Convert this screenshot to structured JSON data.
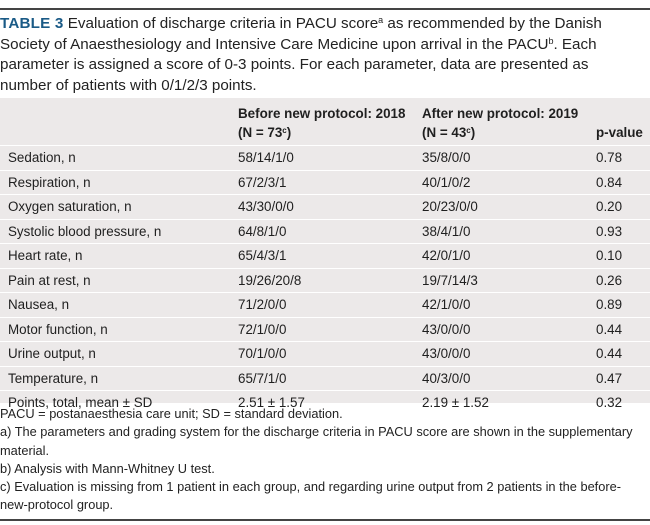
{
  "caption": {
    "label": "TABLE 3",
    "text_1": " Evaluation of discharge criteria in PACU score",
    "sup_a": "a",
    "text_2": " as recommended by the Danish Society of Anaesthesiology and Intensive Care Medicine upon arrival in the PACU",
    "sup_b": "b",
    "text_3": ". Each parameter is assigned a score of 0-3 points. For each parameter, data are presented as number of patients with 0/1/2/3 points."
  },
  "table": {
    "headers": {
      "parameter": "",
      "before_title": "Before new protocol: 2018",
      "before_n": "(N = 73",
      "before_sup": "c",
      "before_close": ")",
      "after_title": "After new protocol: 2019",
      "after_n": "(N = 43",
      "after_sup": "c",
      "after_close": ")",
      "pvalue": "p-value"
    },
    "rows": [
      {
        "parameter": "Sedation, n",
        "before": "58/14/1/0",
        "after": "35/8/0/0",
        "p": "0.78"
      },
      {
        "parameter": "Respiration, n",
        "before": "67/2/3/1",
        "after": "40/1/0/2",
        "p": "0.84"
      },
      {
        "parameter": "Oxygen saturation, n",
        "before": "43/30/0/0",
        "after": "20/23/0/0",
        "p": "0.20"
      },
      {
        "parameter": "Systolic blood pressure, n",
        "before": "64/8/1/0",
        "after": "38/4/1/0",
        "p": "0.93"
      },
      {
        "parameter": "Heart rate, n",
        "before": "65/4/3/1",
        "after": "42/0/1/0",
        "p": "0.10"
      },
      {
        "parameter": "Pain at rest, n",
        "before": "19/26/20/8",
        "after": "19/7/14/3",
        "p": "0.26"
      },
      {
        "parameter": "Nausea, n",
        "before": "71/2/0/0",
        "after": "42/1/0/0",
        "p": "0.89"
      },
      {
        "parameter": "Motor function, n",
        "before": "72/1/0/0",
        "after": "43/0/0/0",
        "p": "0.44"
      },
      {
        "parameter": "Urine output, n",
        "before": "70/1/0/0",
        "after": "43/0/0/0",
        "p": "0.44"
      },
      {
        "parameter": "Temperature, n",
        "before": "65/7/1/0",
        "after": "40/3/0/0",
        "p": "0.47"
      },
      {
        "parameter": "Points, total, mean ± SD",
        "before": "2.51 ± 1.57",
        "after": "2.19 ± 1.52",
        "p": "0.32"
      }
    ]
  },
  "footnotes": [
    "PACU = postanaesthesia care unit; SD = standard deviation.",
    "a) The parameters and grading system for the discharge criteria in PACU score are shown in the supplementary material.",
    "b) Analysis with Mann-Whitney U test.",
    "c) Evaluation is missing from 1 patient in each group, and regarding urine output from 2 patients in the before-new-protocol group."
  ],
  "colors": {
    "label": "#1a5a86",
    "row_background": "#ece9e9",
    "rule": "#444444"
  }
}
